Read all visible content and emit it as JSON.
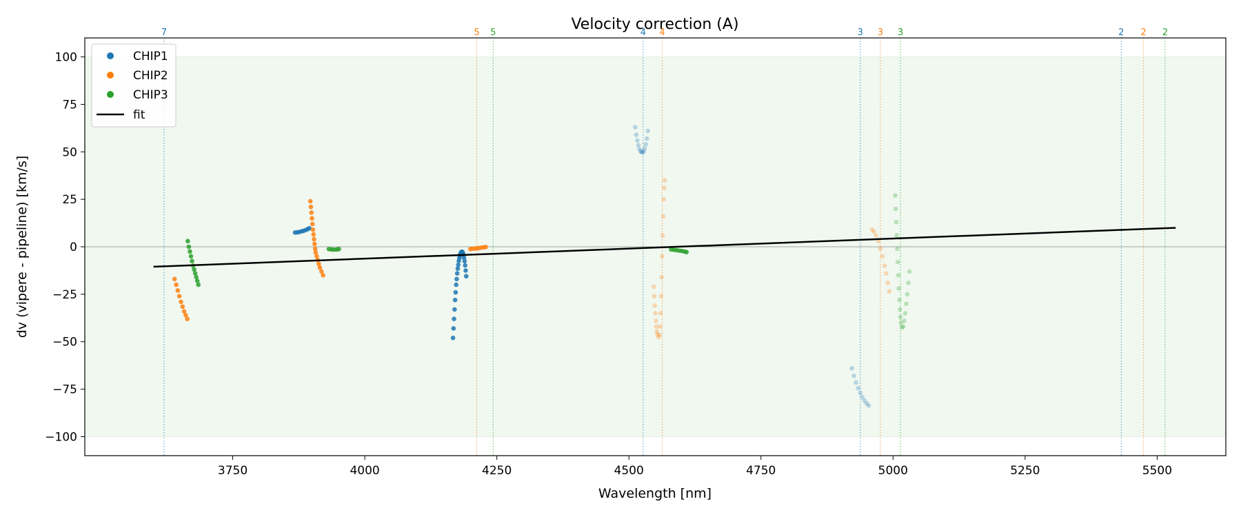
{
  "chart_data": {
    "type": "scatter",
    "title": "Velocity correction (A)",
    "xlabel": "Wavelength [nm]",
    "ylabel": "dv (vipere - pipeline) [km/s]",
    "xlim": [
      3470,
      5630
    ],
    "ylim": [
      -110,
      110
    ],
    "xticks": [
      3750,
      4000,
      4250,
      4500,
      4750,
      5000,
      5250,
      5500
    ],
    "yticks": [
      100,
      75,
      50,
      25,
      0,
      -25,
      -50,
      -75,
      -100
    ],
    "xtick_labels": [
      "3750",
      "4000",
      "4250",
      "4500",
      "4750",
      "5000",
      "5250",
      "5500"
    ],
    "ytick_labels": [
      "100",
      "75",
      "50",
      "25",
      "0",
      "−25",
      "−50",
      "−75",
      "−100"
    ],
    "band": [
      -100,
      100
    ],
    "zero_line": 0,
    "grid": false,
    "legend_position": "upper-left",
    "legend": [
      {
        "label": "CHIP1",
        "marker": "dot",
        "color": "#1f77b4"
      },
      {
        "label": "CHIP2",
        "marker": "dot",
        "color": "#ff7f0e"
      },
      {
        "label": "CHIP3",
        "marker": "dot",
        "color": "#2ca02c"
      },
      {
        "label": "fit",
        "marker": "line",
        "color": "#000000"
      }
    ],
    "fit": {
      "name": "fit",
      "color": "#000000",
      "x": [
        3600,
        5535
      ],
      "y": [
        -10.5,
        10
      ]
    },
    "order_markers": [
      {
        "label": "7",
        "x": 3620,
        "series": "CHIP1"
      },
      {
        "label": "5",
        "x": 4212,
        "series": "CHIP2"
      },
      {
        "label": "5",
        "x": 4243,
        "series": "CHIP3"
      },
      {
        "label": "4",
        "x": 4527,
        "series": "CHIP1"
      },
      {
        "label": "4",
        "x": 4563,
        "series": "CHIP2"
      },
      {
        "label": "3",
        "x": 4938,
        "series": "CHIP1"
      },
      {
        "label": "3",
        "x": 4976,
        "series": "CHIP2"
      },
      {
        "label": "3",
        "x": 5014,
        "series": "CHIP3"
      },
      {
        "label": "2",
        "x": 5432,
        "series": "CHIP1"
      },
      {
        "label": "2",
        "x": 5474,
        "series": "CHIP2"
      },
      {
        "label": "2",
        "x": 5515,
        "series": "CHIP3"
      }
    ],
    "series": [
      {
        "name": "CHIP1",
        "color": "#1f77b4",
        "segments": [
          {
            "opacity": 1.0,
            "points": [
              [
                3868,
                7.5
              ],
              [
                3872,
                7.6
              ],
              [
                3876,
                7.8
              ],
              [
                3880,
                8.1
              ],
              [
                3884,
                8.4
              ],
              [
                3888,
                8.8
              ],
              [
                3892,
                9.3
              ],
              [
                3895,
                9.8
              ]
            ]
          },
          {
            "opacity": 1.0,
            "points": [
              [
                4167,
                -48
              ],
              [
                4168,
                -43
              ],
              [
                4169,
                -38
              ],
              [
                4170,
                -33
              ],
              [
                4171,
                -28
              ],
              [
                4172,
                -24
              ],
              [
                4173,
                -20
              ],
              [
                4174,
                -17
              ],
              [
                4175,
                -14
              ],
              [
                4176,
                -11.5
              ],
              [
                4177,
                -9.5
              ],
              [
                4178,
                -7.5
              ],
              [
                4179,
                -6
              ],
              [
                4180,
                -4.8
              ],
              [
                4181,
                -3.8
              ],
              [
                4182,
                -3.1
              ],
              [
                4183,
                -2.7
              ],
              [
                4184,
                -2.6
              ],
              [
                4185,
                -2.8
              ],
              [
                4186,
                -3.4
              ],
              [
                4187,
                -4.4
              ],
              [
                4188,
                -5.8
              ],
              [
                4189,
                -7.6
              ],
              [
                4190,
                -9.8
              ],
              [
                4191,
                -12.5
              ],
              [
                4192,
                -15.5
              ]
            ]
          },
          {
            "opacity": 0.3,
            "points": [
              [
                4512,
                63
              ],
              [
                4514,
                59
              ],
              [
                4516,
                56
              ],
              [
                4518,
                53.5
              ],
              [
                4520,
                51.5
              ],
              [
                4522,
                50.3
              ],
              [
                4524,
                49.8
              ],
              [
                4526,
                49.8
              ],
              [
                4528,
                50.3
              ],
              [
                4530,
                51.8
              ],
              [
                4532,
                54
              ],
              [
                4534,
                57
              ],
              [
                4536,
                61
              ]
            ]
          },
          {
            "opacity": 0.3,
            "points": [
              [
                4922,
                -64
              ],
              [
                4926,
                -68
              ],
              [
                4930,
                -71.5
              ],
              [
                4934,
                -74.5
              ],
              [
                4938,
                -77
              ],
              [
                4942,
                -79.2
              ],
              [
                4946,
                -81
              ],
              [
                4950,
                -82.5
              ],
              [
                4954,
                -83.6
              ]
            ]
          }
        ]
      },
      {
        "name": "CHIP2",
        "color": "#ff7f0e",
        "segments": [
          {
            "opacity": 1.0,
            "points": [
              [
                3640,
                -17
              ],
              [
                3643,
                -20
              ],
              [
                3646,
                -23
              ],
              [
                3649,
                -26
              ],
              [
                3652,
                -29
              ],
              [
                3655,
                -31.5
              ],
              [
                3658,
                -34
              ],
              [
                3661,
                -36
              ],
              [
                3664,
                -38
              ]
            ]
          },
          {
            "opacity": 1.0,
            "points": [
              [
                3897,
                24
              ],
              [
                3898,
                21
              ],
              [
                3899,
                18
              ],
              [
                3900,
                15
              ],
              [
                3901,
                12
              ],
              [
                3902,
                9
              ],
              [
                3903,
                6.5
              ],
              [
                3904,
                4
              ],
              [
                3905,
                1.5
              ],
              [
                3906,
                -1
              ],
              [
                3907,
                -3
              ],
              [
                3909,
                -5
              ],
              [
                3911,
                -7
              ],
              [
                3913,
                -9
              ],
              [
                3915,
                -11
              ],
              [
                3918,
                -13
              ],
              [
                3921,
                -15
              ]
            ]
          },
          {
            "opacity": 1.0,
            "points": [
              [
                4200,
                -1.2
              ],
              [
                4205,
                -1.0
              ],
              [
                4210,
                -0.9
              ],
              [
                4215,
                -0.7
              ],
              [
                4220,
                -0.5
              ],
              [
                4225,
                -0.3
              ],
              [
                4229,
                -0.1
              ]
            ]
          },
          {
            "opacity": 0.3,
            "points": [
              [
                4547,
                -21
              ],
              [
                4548,
                -26
              ],
              [
                4549,
                -31
              ],
              [
                4550,
                -35
              ],
              [
                4551,
                -39
              ],
              [
                4552,
                -42
              ],
              [
                4553,
                -44.5
              ],
              [
                4554,
                -46
              ],
              [
                4556,
                -47.5
              ],
              [
                4558,
                -46.5
              ],
              [
                4559,
                -42
              ],
              [
                4560,
                -35
              ],
              [
                4561,
                -26
              ],
              [
                4562,
                -16
              ],
              [
                4563,
                -5
              ],
              [
                4564,
                6
              ],
              [
                4565,
                16
              ],
              [
                4566,
                25
              ],
              [
                4567,
                31
              ],
              [
                4568,
                35
              ]
            ]
          },
          {
            "opacity": 0.3,
            "points": [
              [
                4960,
                9
              ],
              [
                4964,
                8
              ],
              [
                4968,
                6
              ],
              [
                4972,
                3
              ],
              [
                4976,
                -1
              ],
              [
                4980,
                -5
              ],
              [
                4984,
                -10
              ],
              [
                4987,
                -14
              ],
              [
                4990,
                -19
              ],
              [
                4993,
                -23.5
              ]
            ]
          }
        ]
      },
      {
        "name": "CHIP3",
        "color": "#2ca02c",
        "segments": [
          {
            "opacity": 1.0,
            "points": [
              [
                3665,
                3
              ],
              [
                3667,
                0
              ],
              [
                3669,
                -2.5
              ],
              [
                3671,
                -5
              ],
              [
                3673,
                -7.5
              ],
              [
                3675,
                -10
              ],
              [
                3677,
                -12
              ],
              [
                3679,
                -14
              ],
              [
                3681,
                -16
              ],
              [
                3683,
                -18
              ],
              [
                3685,
                -20
              ]
            ]
          },
          {
            "opacity": 1.0,
            "points": [
              [
                3932,
                -1.2
              ],
              [
                3937,
                -1.4
              ],
              [
                3942,
                -1.5
              ],
              [
                3947,
                -1.4
              ],
              [
                3951,
                -1.2
              ]
            ]
          },
          {
            "opacity": 1.0,
            "points": [
              [
                4580,
                -1.4
              ],
              [
                4585,
                -1.6
              ],
              [
                4590,
                -1.8
              ],
              [
                4595,
                -2.0
              ],
              [
                4600,
                -2.2
              ],
              [
                4605,
                -2.5
              ],
              [
                4609,
                -2.8
              ]
            ]
          },
          {
            "opacity": 0.3,
            "points": [
              [
                5004,
                27
              ],
              [
                5005,
                20
              ],
              [
                5006,
                13
              ],
              [
                5007,
                6
              ],
              [
                5008,
                -1
              ],
              [
                5009,
                -8
              ],
              [
                5010,
                -15
              ],
              [
                5011,
                -22
              ],
              [
                5012,
                -28
              ],
              [
                5013,
                -33
              ],
              [
                5014,
                -37
              ],
              [
                5015,
                -40
              ],
              [
                5017,
                -42.5
              ],
              [
                5019,
                -42
              ],
              [
                5021,
                -39
              ],
              [
                5023,
                -35
              ],
              [
                5025,
                -30
              ],
              [
                5027,
                -25
              ],
              [
                5029,
                -19
              ],
              [
                5031,
                -13
              ]
            ]
          }
        ]
      }
    ]
  }
}
